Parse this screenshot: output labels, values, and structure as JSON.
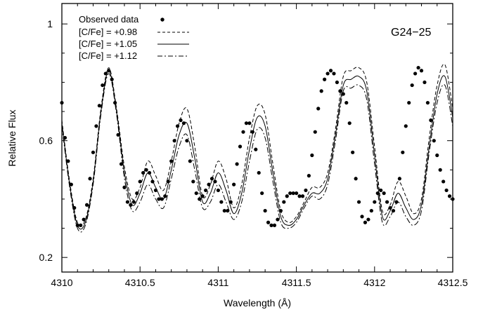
{
  "chart_data": {
    "type": "line",
    "title": "",
    "annotation": "G24−25",
    "xlabel": "Wavelength (Å)",
    "ylabel": "Relative Flux",
    "xlim": [
      4310,
      4312.5
    ],
    "ylim": [
      0.15,
      1.07
    ],
    "xticks": [
      4310,
      4310.5,
      4311,
      4311.5,
      4312,
      4312.5
    ],
    "xtick_labels": [
      "4310",
      "4310.5",
      "4311",
      "4311.5",
      "4312",
      "4312.5"
    ],
    "yticks": [
      0.2,
      0.6,
      1
    ],
    "ytick_labels": [
      "0.2",
      "0.6",
      "1"
    ],
    "grid": false,
    "legend_position": "top-left",
    "legend": [
      {
        "label": "Observed data",
        "style": "points"
      },
      {
        "label": "[C/Fe] = +0.98",
        "style": "dashed"
      },
      {
        "label": "[C/Fe] = +1.05",
        "style": "solid"
      },
      {
        "label": "[C/Fe] = +1.12",
        "style": "dashdot"
      }
    ],
    "series": [
      {
        "name": "[C/Fe] = +1.05",
        "style": "solid",
        "x": [
          4310.0,
          4310.05,
          4310.1,
          4310.15,
          4310.2,
          4310.25,
          4310.3,
          4310.35,
          4310.4,
          4310.45,
          4310.5,
          4310.55,
          4310.6,
          4310.65,
          4310.7,
          4310.75,
          4310.8,
          4310.85,
          4310.9,
          4310.95,
          4311.0,
          4311.05,
          4311.1,
          4311.15,
          4311.2,
          4311.25,
          4311.3,
          4311.35,
          4311.4,
          4311.45,
          4311.5,
          4311.55,
          4311.6,
          4311.65,
          4311.7,
          4311.75,
          4311.8,
          4311.85,
          4311.9,
          4311.95,
          4312.0,
          4312.05,
          4312.1,
          4312.15,
          4312.2,
          4312.25,
          4312.3,
          4312.35,
          4312.4,
          4312.45,
          4312.5
        ],
        "y": [
          0.66,
          0.45,
          0.31,
          0.32,
          0.46,
          0.7,
          0.84,
          0.7,
          0.49,
          0.38,
          0.42,
          0.49,
          0.44,
          0.4,
          0.5,
          0.62,
          0.66,
          0.54,
          0.39,
          0.42,
          0.49,
          0.43,
          0.35,
          0.42,
          0.57,
          0.68,
          0.65,
          0.49,
          0.34,
          0.31,
          0.33,
          0.38,
          0.42,
          0.42,
          0.47,
          0.62,
          0.79,
          0.81,
          0.82,
          0.77,
          0.55,
          0.34,
          0.36,
          0.42,
          0.37,
          0.33,
          0.38,
          0.58,
          0.76,
          0.82,
          0.68
        ]
      },
      {
        "name": "[C/Fe] = +0.98",
        "style": "dashed",
        "x": [
          4310.0,
          4310.05,
          4310.1,
          4310.15,
          4310.2,
          4310.25,
          4310.3,
          4310.35,
          4310.4,
          4310.45,
          4310.5,
          4310.55,
          4310.6,
          4310.65,
          4310.7,
          4310.75,
          4310.8,
          4310.85,
          4310.9,
          4310.95,
          4311.0,
          4311.05,
          4311.1,
          4311.15,
          4311.2,
          4311.25,
          4311.3,
          4311.35,
          4311.4,
          4311.45,
          4311.5,
          4311.55,
          4311.6,
          4311.65,
          4311.7,
          4311.75,
          4311.8,
          4311.85,
          4311.9,
          4311.95,
          4312.0,
          4312.05,
          4312.1,
          4312.15,
          4312.2,
          4312.25,
          4312.3,
          4312.35,
          4312.4,
          4312.45,
          4312.5
        ],
        "y": [
          0.67,
          0.46,
          0.32,
          0.33,
          0.47,
          0.71,
          0.85,
          0.71,
          0.51,
          0.4,
          0.44,
          0.53,
          0.48,
          0.43,
          0.53,
          0.66,
          0.71,
          0.58,
          0.41,
          0.45,
          0.53,
          0.47,
          0.37,
          0.45,
          0.61,
          0.72,
          0.69,
          0.52,
          0.36,
          0.32,
          0.34,
          0.39,
          0.44,
          0.44,
          0.49,
          0.64,
          0.82,
          0.84,
          0.85,
          0.8,
          0.58,
          0.36,
          0.38,
          0.46,
          0.41,
          0.35,
          0.4,
          0.61,
          0.79,
          0.86,
          0.71
        ]
      },
      {
        "name": "[C/Fe] = +1.12",
        "style": "dashdot",
        "x": [
          4310.0,
          4310.05,
          4310.1,
          4310.15,
          4310.2,
          4310.25,
          4310.3,
          4310.35,
          4310.4,
          4310.45,
          4310.5,
          4310.55,
          4310.6,
          4310.65,
          4310.7,
          4310.75,
          4310.8,
          4310.85,
          4310.9,
          4310.95,
          4311.0,
          4311.05,
          4311.1,
          4311.15,
          4311.2,
          4311.25,
          4311.3,
          4311.35,
          4311.4,
          4311.45,
          4311.5,
          4311.55,
          4311.6,
          4311.65,
          4311.7,
          4311.75,
          4311.8,
          4311.85,
          4311.9,
          4311.95,
          4312.0,
          4312.05,
          4312.1,
          4312.15,
          4312.2,
          4312.25,
          4312.3,
          4312.35,
          4312.4,
          4312.45,
          4312.5
        ],
        "y": [
          0.65,
          0.44,
          0.3,
          0.31,
          0.45,
          0.69,
          0.83,
          0.69,
          0.47,
          0.36,
          0.39,
          0.45,
          0.4,
          0.37,
          0.47,
          0.58,
          0.62,
          0.5,
          0.37,
          0.39,
          0.45,
          0.39,
          0.33,
          0.39,
          0.53,
          0.64,
          0.61,
          0.46,
          0.32,
          0.3,
          0.32,
          0.37,
          0.41,
          0.4,
          0.45,
          0.6,
          0.77,
          0.78,
          0.79,
          0.74,
          0.52,
          0.32,
          0.34,
          0.39,
          0.34,
          0.31,
          0.36,
          0.56,
          0.73,
          0.79,
          0.65
        ]
      }
    ],
    "observed": {
      "name": "Observed data",
      "x": [
        4310.0,
        4310.02,
        4310.04,
        4310.06,
        4310.08,
        4310.1,
        4310.12,
        4310.14,
        4310.16,
        4310.18,
        4310.2,
        4310.22,
        4310.24,
        4310.26,
        4310.28,
        4310.3,
        4310.32,
        4310.34,
        4310.36,
        4310.38,
        4310.4,
        4310.42,
        4310.44,
        4310.46,
        4310.48,
        4310.5,
        4310.52,
        4310.54,
        4310.56,
        4310.58,
        4310.6,
        4310.62,
        4310.64,
        4310.66,
        4310.68,
        4310.7,
        4310.72,
        4310.74,
        4310.76,
        4310.78,
        4310.8,
        4310.82,
        4310.84,
        4310.86,
        4310.88,
        4310.9,
        4310.92,
        4310.94,
        4310.96,
        4310.98,
        4311.0,
        4311.02,
        4311.04,
        4311.06,
        4311.08,
        4311.1,
        4311.12,
        4311.14,
        4311.16,
        4311.18,
        4311.2,
        4311.22,
        4311.24,
        4311.26,
        4311.28,
        4311.3,
        4311.32,
        4311.34,
        4311.36,
        4311.38,
        4311.4,
        4311.42,
        4311.44,
        4311.46,
        4311.48,
        4311.5,
        4311.52,
        4311.54,
        4311.56,
        4311.58,
        4311.6,
        4311.62,
        4311.64,
        4311.66,
        4311.68,
        4311.7,
        4311.72,
        4311.74,
        4311.76,
        4311.78,
        4311.8,
        4311.82,
        4311.84,
        4311.86,
        4311.88,
        4311.9,
        4311.92,
        4311.94,
        4311.96,
        4311.98,
        4312.0,
        4312.02,
        4312.04,
        4312.06,
        4312.08,
        4312.1,
        4312.12,
        4312.14,
        4312.16,
        4312.18,
        4312.2,
        4312.22,
        4312.24,
        4312.26,
        4312.28,
        4312.3,
        4312.32,
        4312.34,
        4312.36,
        4312.38,
        4312.4,
        4312.42,
        4312.44,
        4312.46,
        4312.48,
        4312.5
      ],
      "y": [
        0.73,
        0.61,
        0.53,
        0.45,
        0.37,
        0.31,
        0.31,
        0.33,
        0.38,
        0.47,
        0.56,
        0.65,
        0.72,
        0.79,
        0.83,
        0.84,
        0.81,
        0.73,
        0.62,
        0.52,
        0.44,
        0.39,
        0.38,
        0.39,
        0.42,
        0.46,
        0.49,
        0.5,
        0.49,
        0.46,
        0.43,
        0.4,
        0.4,
        0.41,
        0.46,
        0.53,
        0.6,
        0.65,
        0.67,
        0.66,
        0.6,
        0.53,
        0.46,
        0.42,
        0.4,
        0.41,
        0.43,
        0.45,
        0.47,
        0.46,
        0.43,
        0.39,
        0.36,
        0.36,
        0.39,
        0.45,
        0.52,
        0.58,
        0.63,
        0.66,
        0.66,
        0.63,
        0.57,
        0.49,
        0.42,
        0.36,
        0.32,
        0.31,
        0.31,
        0.33,
        0.36,
        0.39,
        0.41,
        0.42,
        0.42,
        0.42,
        0.41,
        0.41,
        0.43,
        0.48,
        0.55,
        0.63,
        0.71,
        0.77,
        0.81,
        0.83,
        0.84,
        0.83,
        0.8,
        0.77,
        0.76,
        0.73,
        0.66,
        0.56,
        0.47,
        0.39,
        0.34,
        0.32,
        0.33,
        0.36,
        0.39,
        0.42,
        0.43,
        0.42,
        0.39,
        0.37,
        0.36,
        0.39,
        0.47,
        0.56,
        0.65,
        0.73,
        0.79,
        0.83,
        0.85,
        0.84,
        0.8,
        0.73,
        0.67,
        0.6,
        0.55,
        0.5,
        0.46,
        0.43,
        0.41,
        0.4
      ]
    }
  }
}
